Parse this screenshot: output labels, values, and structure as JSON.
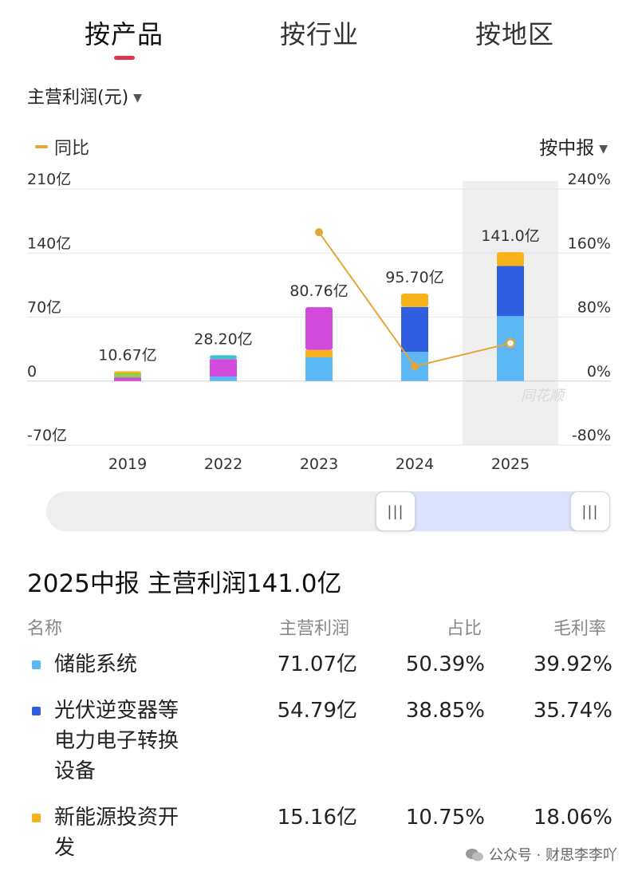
{
  "tabs": [
    "按产品",
    "按行业",
    "按地区"
  ],
  "metric_select": {
    "label": "主营利润(元)",
    "icon": "caret-down-icon"
  },
  "legend": {
    "label": "同比"
  },
  "period_select": {
    "label": "按中报",
    "icon": "caret-down-icon"
  },
  "chart_watermark": "同花顺",
  "colors": {
    "storage": "#5bb8f5",
    "pv_inverter": "#2f5ee0",
    "new_energy": "#f6b31d",
    "magenta": "#d14adb",
    "teal": "#3ec2c9",
    "green": "#8fcf4a",
    "line": "#e3a43a",
    "highlight": "#efefef"
  },
  "chart_data": {
    "type": "bar",
    "categories": [
      "2019",
      "2022",
      "2023",
      "2024",
      "2025"
    ],
    "totals_labels": [
      "10.67亿",
      "28.20亿",
      "80.76亿",
      "95.70亿",
      "141.0亿"
    ],
    "totals": [
      10.67,
      28.2,
      80.76,
      95.7,
      141.0
    ],
    "left_axis": {
      "ticks": [
        "210亿",
        "140亿",
        "70亿",
        "0",
        "-70亿"
      ],
      "range": [
        -70,
        210
      ]
    },
    "right_axis": {
      "ticks": [
        "240%",
        "160%",
        "80%",
        "0%",
        "-80%"
      ],
      "range": [
        -80,
        240
      ]
    },
    "highlight_category": "2025",
    "stacks": [
      [
        {
          "value": 4.0,
          "color": "magenta"
        },
        {
          "value": 4.5,
          "color": "green"
        },
        {
          "value": 2.17,
          "color": "new_energy"
        }
      ],
      [
        {
          "value": 5.0,
          "color": "storage"
        },
        {
          "value": 19.0,
          "color": "magenta"
        },
        {
          "value": 4.2,
          "color": "teal"
        }
      ],
      [
        {
          "value": 26.0,
          "color": "storage"
        },
        {
          "value": 8.0,
          "color": "new_energy"
        },
        {
          "value": 46.76,
          "color": "magenta"
        }
      ],
      [
        {
          "value": 32.0,
          "color": "storage"
        },
        {
          "value": 49.0,
          "color": "pv_inverter"
        },
        {
          "value": 14.7,
          "color": "new_energy"
        }
      ],
      [
        {
          "value": 71.07,
          "color": "storage"
        },
        {
          "value": 54.79,
          "color": "pv_inverter"
        },
        {
          "value": 15.16,
          "color": "new_energy"
        }
      ]
    ],
    "yoy_series": {
      "name": "同比",
      "values": [
        null,
        null,
        186,
        18.5,
        47.3
      ]
    }
  },
  "summary": {
    "title": "2025中报 主营利润141.0亿",
    "headers": [
      "名称",
      "主营利润",
      "占比",
      "毛利率"
    ],
    "rows": [
      {
        "name": "储能系统",
        "profit": "71.07亿",
        "share": "50.39%",
        "margin": "39.92%",
        "color": "storage"
      },
      {
        "name": "光伏逆变器等电力电子转换设备",
        "profit": "54.79亿",
        "share": "38.85%",
        "margin": "35.74%",
        "color": "pv_inverter"
      },
      {
        "name": "新能源投资开发",
        "profit": "15.16亿",
        "share": "10.75%",
        "margin": "18.06%",
        "color": "new_energy"
      }
    ]
  },
  "footer": {
    "watermark": "公众号 · 财思李李吖",
    "icon": "wechat-icon"
  }
}
